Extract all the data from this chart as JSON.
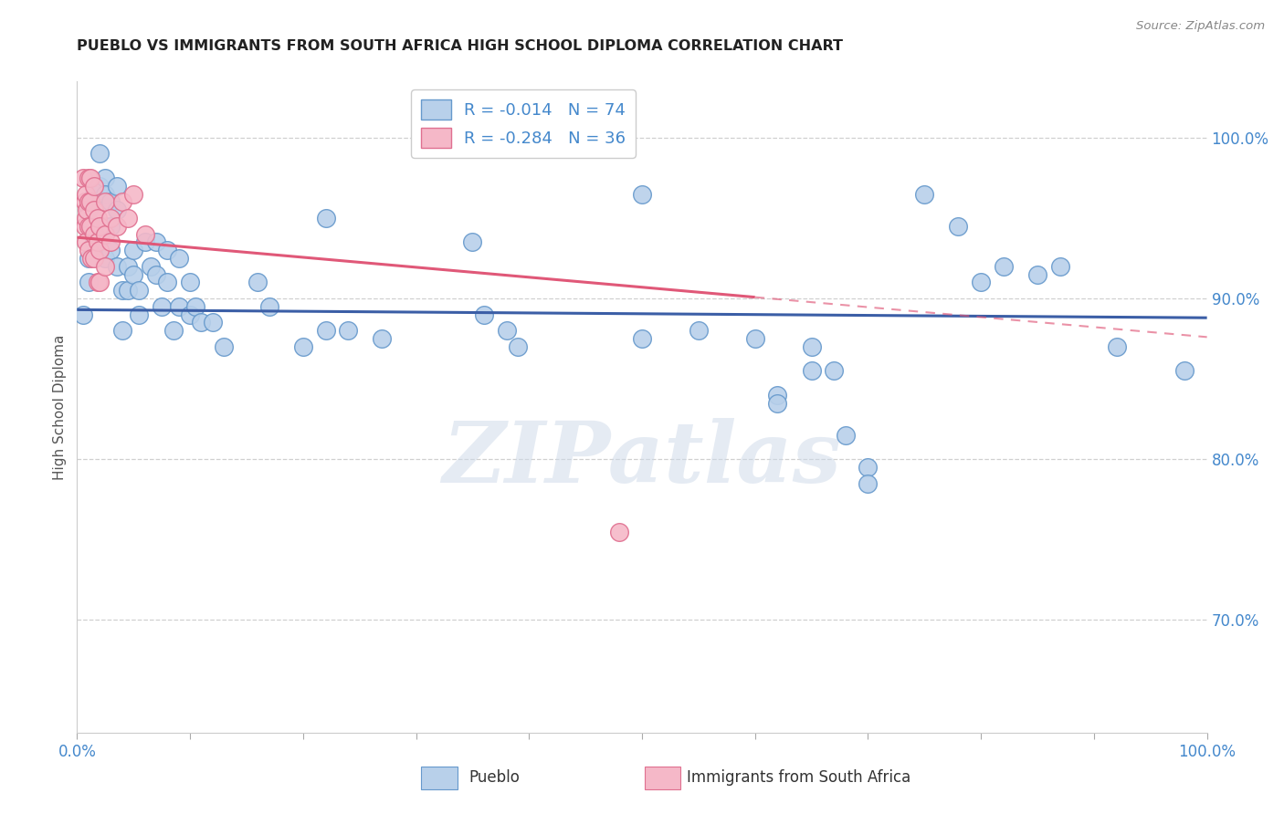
{
  "title": "PUEBLO VS IMMIGRANTS FROM SOUTH AFRICA HIGH SCHOOL DIPLOMA CORRELATION CHART",
  "source": "Source: ZipAtlas.com",
  "ylabel": "High School Diploma",
  "xlim": [
    0.0,
    1.0
  ],
  "ylim": [
    0.63,
    1.035
  ],
  "watermark_text": "ZIPatlas",
  "series_blue": {
    "color_fill": "#b8d0ea",
    "color_edge": "#6699cc",
    "R": -0.014,
    "N": 74,
    "line_color": "#3b5ea6",
    "trend_y_start": 0.893,
    "trend_y_end": 0.888,
    "points": [
      [
        0.005,
        0.89
      ],
      [
        0.01,
        0.955
      ],
      [
        0.01,
        0.925
      ],
      [
        0.01,
        0.91
      ],
      [
        0.015,
        0.965
      ],
      [
        0.015,
        0.935
      ],
      [
        0.02,
        0.99
      ],
      [
        0.02,
        0.97
      ],
      [
        0.02,
        0.945
      ],
      [
        0.025,
        0.975
      ],
      [
        0.025,
        0.965
      ],
      [
        0.025,
        0.945
      ],
      [
        0.025,
        0.925
      ],
      [
        0.03,
        0.96
      ],
      [
        0.03,
        0.945
      ],
      [
        0.03,
        0.93
      ],
      [
        0.035,
        0.97
      ],
      [
        0.035,
        0.955
      ],
      [
        0.035,
        0.92
      ],
      [
        0.04,
        0.905
      ],
      [
        0.04,
        0.88
      ],
      [
        0.045,
        0.92
      ],
      [
        0.045,
        0.905
      ],
      [
        0.05,
        0.93
      ],
      [
        0.05,
        0.915
      ],
      [
        0.055,
        0.905
      ],
      [
        0.055,
        0.89
      ],
      [
        0.06,
        0.935
      ],
      [
        0.065,
        0.92
      ],
      [
        0.07,
        0.935
      ],
      [
        0.07,
        0.915
      ],
      [
        0.075,
        0.895
      ],
      [
        0.08,
        0.93
      ],
      [
        0.08,
        0.91
      ],
      [
        0.085,
        0.88
      ],
      [
        0.09,
        0.925
      ],
      [
        0.09,
        0.895
      ],
      [
        0.1,
        0.91
      ],
      [
        0.1,
        0.89
      ],
      [
        0.105,
        0.895
      ],
      [
        0.11,
        0.885
      ],
      [
        0.12,
        0.885
      ],
      [
        0.13,
        0.87
      ],
      [
        0.16,
        0.91
      ],
      [
        0.17,
        0.895
      ],
      [
        0.2,
        0.87
      ],
      [
        0.22,
        0.95
      ],
      [
        0.22,
        0.88
      ],
      [
        0.24,
        0.88
      ],
      [
        0.27,
        0.875
      ],
      [
        0.35,
        0.935
      ],
      [
        0.36,
        0.89
      ],
      [
        0.38,
        0.88
      ],
      [
        0.39,
        0.87
      ],
      [
        0.5,
        0.965
      ],
      [
        0.5,
        0.875
      ],
      [
        0.55,
        0.88
      ],
      [
        0.6,
        0.875
      ],
      [
        0.62,
        0.84
      ],
      [
        0.62,
        0.835
      ],
      [
        0.65,
        0.87
      ],
      [
        0.65,
        0.855
      ],
      [
        0.67,
        0.855
      ],
      [
        0.68,
        0.815
      ],
      [
        0.7,
        0.795
      ],
      [
        0.7,
        0.785
      ],
      [
        0.75,
        0.965
      ],
      [
        0.78,
        0.945
      ],
      [
        0.8,
        0.91
      ],
      [
        0.82,
        0.92
      ],
      [
        0.85,
        0.915
      ],
      [
        0.87,
        0.92
      ],
      [
        0.92,
        0.87
      ],
      [
        0.98,
        0.855
      ]
    ]
  },
  "series_pink": {
    "color_fill": "#f5b8c8",
    "color_edge": "#e07090",
    "R": -0.284,
    "N": 36,
    "line_color": "#e05878",
    "trend_y_start": 0.938,
    "trend_y_end": 0.876,
    "trend_solid_end_x": 0.6,
    "points": [
      [
        0.005,
        0.975
      ],
      [
        0.007,
        0.96
      ],
      [
        0.007,
        0.945
      ],
      [
        0.008,
        0.965
      ],
      [
        0.008,
        0.95
      ],
      [
        0.008,
        0.935
      ],
      [
        0.009,
        0.955
      ],
      [
        0.01,
        0.975
      ],
      [
        0.01,
        0.96
      ],
      [
        0.01,
        0.945
      ],
      [
        0.01,
        0.93
      ],
      [
        0.012,
        0.975
      ],
      [
        0.012,
        0.96
      ],
      [
        0.012,
        0.945
      ],
      [
        0.013,
        0.925
      ],
      [
        0.015,
        0.97
      ],
      [
        0.015,
        0.955
      ],
      [
        0.015,
        0.94
      ],
      [
        0.015,
        0.925
      ],
      [
        0.018,
        0.95
      ],
      [
        0.018,
        0.935
      ],
      [
        0.018,
        0.91
      ],
      [
        0.02,
        0.945
      ],
      [
        0.02,
        0.93
      ],
      [
        0.02,
        0.91
      ],
      [
        0.025,
        0.96
      ],
      [
        0.025,
        0.94
      ],
      [
        0.025,
        0.92
      ],
      [
        0.03,
        0.95
      ],
      [
        0.03,
        0.935
      ],
      [
        0.035,
        0.945
      ],
      [
        0.04,
        0.96
      ],
      [
        0.045,
        0.95
      ],
      [
        0.05,
        0.965
      ],
      [
        0.48,
        0.755
      ],
      [
        0.06,
        0.94
      ]
    ]
  },
  "background_color": "#ffffff",
  "grid_color": "#d0d0d0",
  "title_color": "#222222",
  "axis_color": "#4488cc",
  "tick_color": "#888888"
}
